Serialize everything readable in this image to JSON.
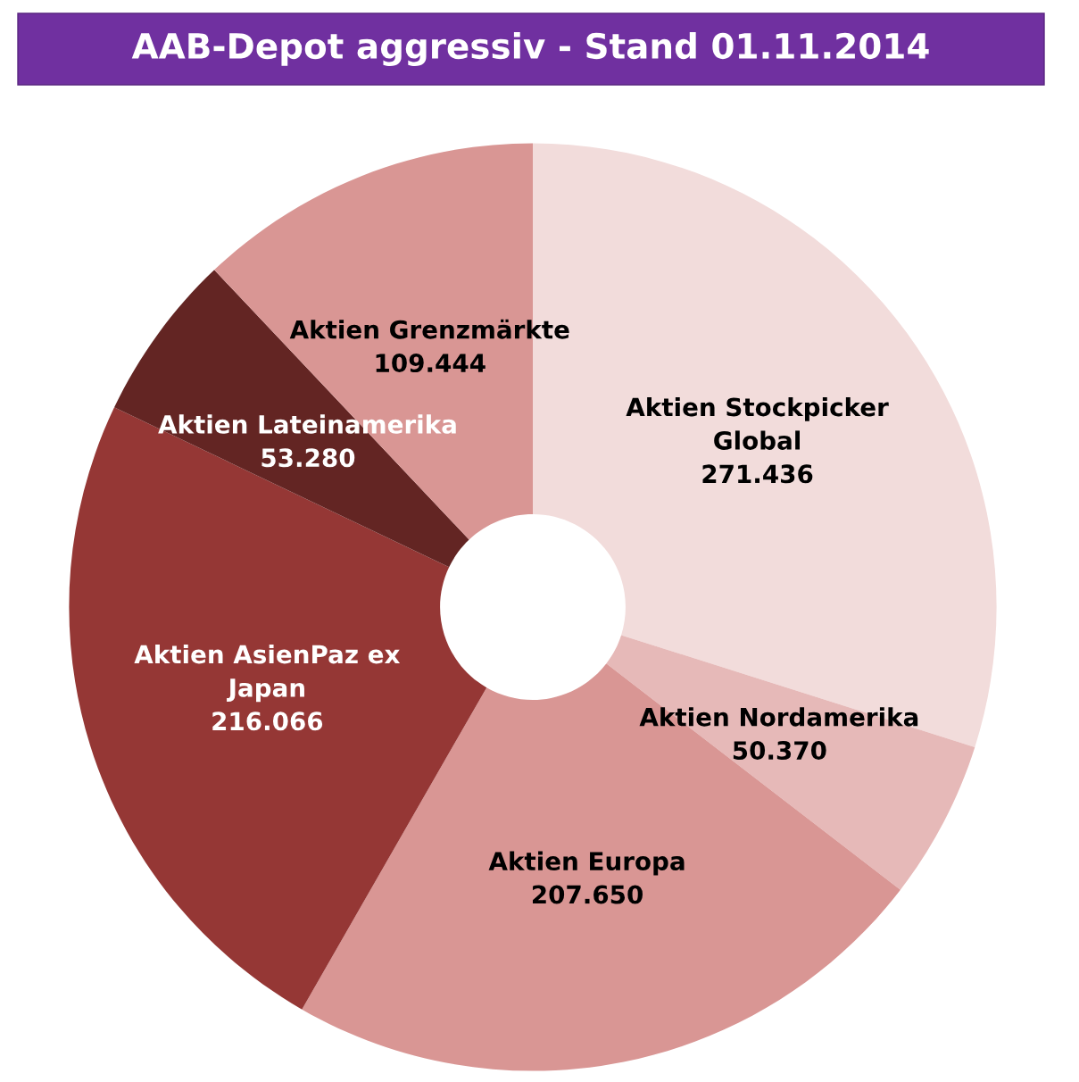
{
  "chart_data": {
    "type": "donut",
    "title": "AAB-Depot aggressiv - Stand 01.11.2014",
    "categories": [
      "Aktien Stockpicker\nGlobal",
      "Aktien Nordamerika",
      "Aktien Europa",
      "Aktien AsienPaz ex\nJapan",
      "Aktien Lateinamerika",
      "Aktien Grenzmärkte"
    ],
    "values": [
      271436,
      50370,
      207650,
      216066,
      53280,
      109444
    ],
    "value_labels": [
      "271.436",
      "50.370",
      "207.650",
      "216.066",
      "53.280",
      "109.444"
    ],
    "colors": [
      "#f2dcdb",
      "#e6b9b8",
      "#d99694",
      "#953735",
      "#632523",
      "#d99694"
    ],
    "legend": false
  }
}
